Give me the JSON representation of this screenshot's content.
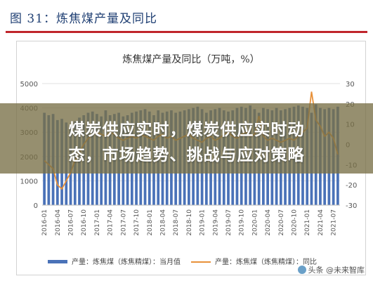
{
  "header": {
    "figure_title": "图 31：炼焦煤产量及同比"
  },
  "chart_data": {
    "type": "bar+line",
    "title": "炼焦煤产量及同比（万吨，%）",
    "left_axis": {
      "ylim": [
        0,
        5000
      ],
      "ticks": [
        "0",
        "1000",
        "2000",
        "3000",
        "4000",
        "5000"
      ]
    },
    "right_axis": {
      "ylim": [
        -30,
        30
      ],
      "ticks": [
        "-30",
        "-20",
        "-10",
        "0",
        "10",
        "20",
        "30"
      ]
    },
    "x_tick_labels": [
      "2016-01",
      "2016-04",
      "2016-07",
      "2016-10",
      "2017-01",
      "2017-04",
      "2017-07",
      "2017-10",
      "2018-01",
      "2018-04",
      "2018-07",
      "2018-10",
      "2019-01",
      "2019-04",
      "2019-07",
      "2019-10",
      "2020-01",
      "2020-04",
      "2020-07",
      "2020-10",
      "2021-01",
      "2021-04",
      "2021-07"
    ],
    "months": [
      "2016-01",
      "2016-02",
      "2016-03",
      "2016-04",
      "2016-05",
      "2016-06",
      "2016-07",
      "2016-08",
      "2016-09",
      "2016-10",
      "2016-11",
      "2016-12",
      "2017-01",
      "2017-02",
      "2017-03",
      "2017-04",
      "2017-05",
      "2017-06",
      "2017-07",
      "2017-08",
      "2017-09",
      "2017-10",
      "2017-11",
      "2017-12",
      "2018-01",
      "2018-02",
      "2018-03",
      "2018-04",
      "2018-05",
      "2018-06",
      "2018-07",
      "2018-08",
      "2018-09",
      "2018-10",
      "2018-11",
      "2018-12",
      "2019-01",
      "2019-02",
      "2019-03",
      "2019-04",
      "2019-05",
      "2019-06",
      "2019-07",
      "2019-08",
      "2019-09",
      "2019-10",
      "2019-11",
      "2019-12",
      "2020-01",
      "2020-02",
      "2020-03",
      "2020-04",
      "2020-05",
      "2020-06",
      "2020-07",
      "2020-08",
      "2020-09",
      "2020-10",
      "2020-11",
      "2020-12",
      "2021-01",
      "2021-02",
      "2021-03",
      "2021-04",
      "2021-05",
      "2021-06",
      "2021-07",
      "2021-08"
    ],
    "series": [
      {
        "name": "产量：炼焦煤（炼焦精煤）：当月值",
        "kind": "bar",
        "axis": "left",
        "color": "#4a72b8",
        "values": [
          3800,
          3700,
          3750,
          3500,
          3550,
          3400,
          3300,
          3450,
          3600,
          3700,
          3800,
          3850,
          3750,
          3650,
          3900,
          3700,
          3750,
          3800,
          3650,
          3700,
          3800,
          3850,
          3900,
          3950,
          3850,
          3700,
          3900,
          3800,
          3850,
          3900,
          3800,
          3850,
          3900,
          3950,
          4000,
          4050,
          3950,
          3800,
          3900,
          3950,
          4000,
          3900,
          3850,
          3900,
          4000,
          4050,
          4000,
          4100,
          3950,
          3800,
          4000,
          3950,
          3900,
          4000,
          3900,
          3950,
          4000,
          4050,
          4100,
          4050,
          4000,
          3800,
          4150,
          4000,
          3950,
          4000,
          3950,
          4050
        ]
      },
      {
        "name": "产量：炼焦煤（炼焦精煤）：同比",
        "kind": "line",
        "axis": "right",
        "color": "#e8913a",
        "values": [
          -8,
          -10,
          -12,
          -20,
          -22,
          -18,
          -14,
          -8,
          -4,
          0,
          3,
          5,
          6,
          5,
          4,
          6,
          5,
          3,
          2,
          3,
          4,
          3,
          5,
          4,
          3,
          2,
          4,
          5,
          3,
          4,
          2,
          3,
          4,
          5,
          3,
          2,
          1,
          3,
          4,
          2,
          3,
          5,
          6,
          4,
          3,
          5,
          6,
          4,
          5,
          14,
          4,
          2,
          3,
          2,
          1,
          2,
          3,
          2,
          4,
          6,
          8,
          26,
          12,
          9,
          4,
          6,
          3,
          -5
        ]
      }
    ],
    "legend_position": "bottom"
  },
  "overlay": {
    "line1": "煤炭供应实时，煤炭供应实时动",
    "line2": "态，市场趋势、挑战与应对策略"
  },
  "watermark": {
    "text": "头条 @未来智库"
  },
  "colors": {
    "accent_rule": "#c0262c",
    "bar": "#4a72b8",
    "line": "#e8913a"
  }
}
